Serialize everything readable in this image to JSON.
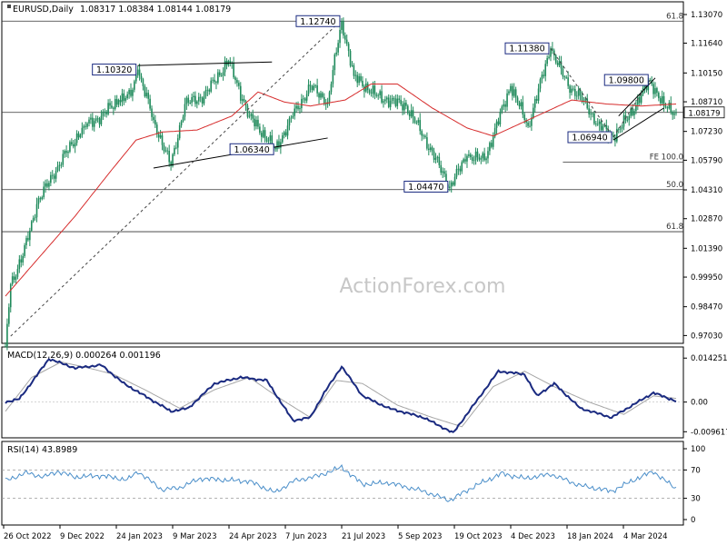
{
  "header": {
    "symbol": "EURUSD,Daily",
    "ohlc": "1.08317 1.08384 1.08144 1.08179"
  },
  "watermark": "ActionForex.com",
  "colors": {
    "candle": "#1f8a5b",
    "ema": "#d62c2c",
    "macd_main": "#1a2a80",
    "macd_signal": "#a6a6a6",
    "rsi": "#4a8ec9",
    "hline": "#333333",
    "label_border": "#1a2a80",
    "annotation_dash": "#444444"
  },
  "chart_data": [
    {
      "type": "candlestick",
      "title": "EURUSD,Daily",
      "price_range": [
        0.9673,
        1.1307
      ],
      "y_ticks": [
        "1.13070",
        "1.11640",
        "1.10150",
        "1.08710",
        "1.07230",
        "1.05790",
        "1.04310",
        "1.02870",
        "1.01390",
        "0.99950",
        "0.98470",
        "0.97030"
      ],
      "current_price_label": "1.08179",
      "x_ticks": [
        "26 Oct 2022",
        "9 Dec 2022",
        "24 Jan 2023",
        "9 Mar 2023",
        "24 Apr 2023",
        "7 Jun 2023",
        "21 Jul 2023",
        "5 Sep 2023",
        "19 Oct 2023",
        "4 Dec 2023",
        "18 Jan 2024",
        "4 Mar 2024"
      ],
      "anchors": [
        {
          "t": 0,
          "p": 0.965
        },
        {
          "t": 3,
          "p": 0.996
        },
        {
          "t": 10,
          "p": 1.01
        },
        {
          "t": 18,
          "p": 1.036
        },
        {
          "t": 30,
          "p": 1.055
        },
        {
          "t": 45,
          "p": 1.075
        },
        {
          "t": 55,
          "p": 1.08
        },
        {
          "t": 65,
          "p": 1.088
        },
        {
          "t": 72,
          "p": 1.09
        },
        {
          "t": 76,
          "p": 1.1032
        },
        {
          "t": 85,
          "p": 1.078
        },
        {
          "t": 95,
          "p": 1.055
        },
        {
          "t": 103,
          "p": 1.086
        },
        {
          "t": 114,
          "p": 1.09
        },
        {
          "t": 128,
          "p": 1.1075
        },
        {
          "t": 140,
          "p": 1.08
        },
        {
          "t": 155,
          "p": 1.0634
        },
        {
          "t": 165,
          "p": 1.08
        },
        {
          "t": 175,
          "p": 1.095
        },
        {
          "t": 185,
          "p": 1.087
        },
        {
          "t": 193,
          "p": 1.1274
        },
        {
          "t": 200,
          "p": 1.1
        },
        {
          "t": 213,
          "p": 1.09
        },
        {
          "t": 230,
          "p": 1.085
        },
        {
          "t": 240,
          "p": 1.07
        },
        {
          "t": 255,
          "p": 1.0447
        },
        {
          "t": 265,
          "p": 1.06
        },
        {
          "t": 275,
          "p": 1.058
        },
        {
          "t": 290,
          "p": 1.095
        },
        {
          "t": 300,
          "p": 1.075
        },
        {
          "t": 313,
          "p": 1.1138
        },
        {
          "t": 323,
          "p": 1.095
        },
        {
          "t": 330,
          "p": 1.09
        },
        {
          "t": 340,
          "p": 1.076
        },
        {
          "t": 349,
          "p": 1.0694
        },
        {
          "t": 358,
          "p": 1.08
        },
        {
          "t": 370,
          "p": 1.098
        },
        {
          "t": 378,
          "p": 1.085
        },
        {
          "t": 385,
          "p": 1.0818
        }
      ],
      "ema_anchors": [
        {
          "t": 0,
          "p": 0.99
        },
        {
          "t": 20,
          "p": 1.01
        },
        {
          "t": 40,
          "p": 1.03
        },
        {
          "t": 60,
          "p": 1.052
        },
        {
          "t": 75,
          "p": 1.068
        },
        {
          "t": 90,
          "p": 1.072
        },
        {
          "t": 110,
          "p": 1.073
        },
        {
          "t": 130,
          "p": 1.08
        },
        {
          "t": 145,
          "p": 1.092
        },
        {
          "t": 160,
          "p": 1.087
        },
        {
          "t": 175,
          "p": 1.085
        },
        {
          "t": 195,
          "p": 1.088
        },
        {
          "t": 210,
          "p": 1.096
        },
        {
          "t": 225,
          "p": 1.096
        },
        {
          "t": 245,
          "p": 1.084
        },
        {
          "t": 265,
          "p": 1.074
        },
        {
          "t": 280,
          "p": 1.07
        },
        {
          "t": 295,
          "p": 1.076
        },
        {
          "t": 310,
          "p": 1.082
        },
        {
          "t": 325,
          "p": 1.088
        },
        {
          "t": 345,
          "p": 1.086
        },
        {
          "t": 365,
          "p": 1.085
        },
        {
          "t": 385,
          "p": 1.086
        }
      ],
      "swing_labels": [
        {
          "text": "1.10320",
          "t": 76,
          "p": 1.1032,
          "side": "left"
        },
        {
          "text": "1.12740",
          "t": 193,
          "p": 1.1274,
          "side": "left"
        },
        {
          "text": "1.06340",
          "t": 155,
          "p": 1.0634,
          "side": "left"
        },
        {
          "text": "1.04470",
          "t": 255,
          "p": 1.0447,
          "side": "left"
        },
        {
          "text": "1.11380",
          "t": 313,
          "p": 1.1138,
          "side": "left"
        },
        {
          "text": "1.06940",
          "t": 349,
          "p": 1.0694,
          "side": "left"
        },
        {
          "text": "1.09800",
          "t": 370,
          "p": 1.098,
          "side": "left"
        }
      ],
      "hlines": [
        {
          "label": "61.8",
          "p": 1.1274,
          "x_from_t": 0
        },
        {
          "label": "FE 100.0",
          "p": 1.057,
          "x_from_t": 320
        },
        {
          "label": "50.0",
          "p": 1.0432,
          "x_from_t": 0
        },
        {
          "label": "61.8",
          "p": 1.0222,
          "x_from_t": 0
        },
        {
          "label": "",
          "p": 1.0818,
          "x_from_t": 0
        }
      ],
      "trendlines": [
        {
          "from": {
            "t": 76,
            "p": 1.1052
          },
          "to": {
            "t": 153,
            "p": 1.107
          },
          "style": "solid"
        },
        {
          "from": {
            "t": 85,
            "p": 1.054
          },
          "to": {
            "t": 185,
            "p": 1.069
          },
          "style": "solid"
        },
        {
          "from": {
            "t": 3,
            "p": 0.97
          },
          "to": {
            "t": 193,
            "p": 1.128
          },
          "style": "dashed"
        },
        {
          "from": {
            "t": 313,
            "p": 1.1138
          },
          "to": {
            "t": 349,
            "p": 1.0694
          },
          "style": "dashed"
        },
        {
          "from": {
            "t": 349,
            "p": 1.0694
          },
          "to": {
            "t": 370,
            "p": 1.098
          },
          "style": "dashed"
        },
        {
          "from": {
            "t": 352,
            "p": 1.08
          },
          "to": {
            "t": 373,
            "p": 1.099
          },
          "style": "solid"
        },
        {
          "from": {
            "t": 349,
            "p": 1.068
          },
          "to": {
            "t": 378,
            "p": 1.084
          },
          "style": "solid"
        }
      ]
    },
    {
      "type": "line",
      "title": "MACD(12,26,9) 0.000264 0.001196",
      "y_range": [
        -0.011,
        0.0155
      ],
      "y_ticks": [
        "0.014251",
        "0.00",
        "-0.009617"
      ],
      "main_anchors": [
        {
          "t": 0,
          "p": 0.0
        },
        {
          "t": 8,
          "p": 0.001
        },
        {
          "t": 25,
          "p": 0.014
        },
        {
          "t": 40,
          "p": 0.011
        },
        {
          "t": 55,
          "p": 0.012
        },
        {
          "t": 68,
          "p": 0.006
        },
        {
          "t": 80,
          "p": 0.002
        },
        {
          "t": 95,
          "p": -0.003
        },
        {
          "t": 105,
          "p": -0.002
        },
        {
          "t": 120,
          "p": 0.006
        },
        {
          "t": 135,
          "p": 0.008
        },
        {
          "t": 150,
          "p": 0.007
        },
        {
          "t": 165,
          "p": -0.006
        },
        {
          "t": 175,
          "p": -0.005
        },
        {
          "t": 183,
          "p": 0.003
        },
        {
          "t": 193,
          "p": 0.0115
        },
        {
          "t": 205,
          "p": 0.002
        },
        {
          "t": 220,
          "p": -0.002
        },
        {
          "t": 240,
          "p": -0.005
        },
        {
          "t": 257,
          "p": -0.01
        },
        {
          "t": 270,
          "p": 0.0
        },
        {
          "t": 283,
          "p": 0.01
        },
        {
          "t": 298,
          "p": 0.009
        },
        {
          "t": 305,
          "p": 0.002
        },
        {
          "t": 315,
          "p": 0.006
        },
        {
          "t": 330,
          "p": -0.002
        },
        {
          "t": 348,
          "p": -0.005
        },
        {
          "t": 360,
          "p": -0.001
        },
        {
          "t": 372,
          "p": 0.003
        },
        {
          "t": 385,
          "p": 0.0003
        }
      ],
      "signal_anchors": [
        {
          "t": 0,
          "p": -0.003
        },
        {
          "t": 15,
          "p": 0.008
        },
        {
          "t": 32,
          "p": 0.013
        },
        {
          "t": 48,
          "p": 0.011
        },
        {
          "t": 62,
          "p": 0.009
        },
        {
          "t": 80,
          "p": 0.004
        },
        {
          "t": 100,
          "p": -0.002
        },
        {
          "t": 120,
          "p": 0.004
        },
        {
          "t": 140,
          "p": 0.008
        },
        {
          "t": 158,
          "p": 0.001
        },
        {
          "t": 175,
          "p": -0.005
        },
        {
          "t": 190,
          "p": 0.007
        },
        {
          "t": 205,
          "p": 0.006
        },
        {
          "t": 225,
          "p": -0.001
        },
        {
          "t": 245,
          "p": -0.005
        },
        {
          "t": 262,
          "p": -0.008
        },
        {
          "t": 280,
          "p": 0.005
        },
        {
          "t": 298,
          "p": 0.01
        },
        {
          "t": 315,
          "p": 0.005
        },
        {
          "t": 335,
          "p": 0.0
        },
        {
          "t": 355,
          "p": -0.004
        },
        {
          "t": 372,
          "p": 0.002
        },
        {
          "t": 385,
          "p": 0.0012
        }
      ]
    },
    {
      "type": "line",
      "title": "RSI(14) 43.8989",
      "y_range": [
        0,
        100
      ],
      "y_ticks": [
        "100",
        "70",
        "30",
        "0"
      ],
      "level_lines": [
        70,
        30
      ],
      "anchors": [
        {
          "t": 0,
          "p": 55
        },
        {
          "t": 12,
          "p": 66
        },
        {
          "t": 22,
          "p": 60
        },
        {
          "t": 30,
          "p": 68
        },
        {
          "t": 40,
          "p": 60
        },
        {
          "t": 55,
          "p": 62
        },
        {
          "t": 70,
          "p": 56
        },
        {
          "t": 76,
          "p": 68
        },
        {
          "t": 90,
          "p": 42
        },
        {
          "t": 100,
          "p": 45
        },
        {
          "t": 112,
          "p": 58
        },
        {
          "t": 125,
          "p": 56
        },
        {
          "t": 140,
          "p": 54
        },
        {
          "t": 155,
          "p": 38
        },
        {
          "t": 165,
          "p": 54
        },
        {
          "t": 180,
          "p": 62
        },
        {
          "t": 193,
          "p": 74
        },
        {
          "t": 205,
          "p": 50
        },
        {
          "t": 220,
          "p": 52
        },
        {
          "t": 240,
          "p": 40
        },
        {
          "t": 255,
          "p": 27
        },
        {
          "t": 270,
          "p": 48
        },
        {
          "t": 285,
          "p": 65
        },
        {
          "t": 298,
          "p": 58
        },
        {
          "t": 313,
          "p": 64
        },
        {
          "t": 330,
          "p": 48
        },
        {
          "t": 348,
          "p": 40
        },
        {
          "t": 360,
          "p": 55
        },
        {
          "t": 372,
          "p": 68
        },
        {
          "t": 378,
          "p": 56
        },
        {
          "t": 385,
          "p": 44
        }
      ]
    }
  ]
}
